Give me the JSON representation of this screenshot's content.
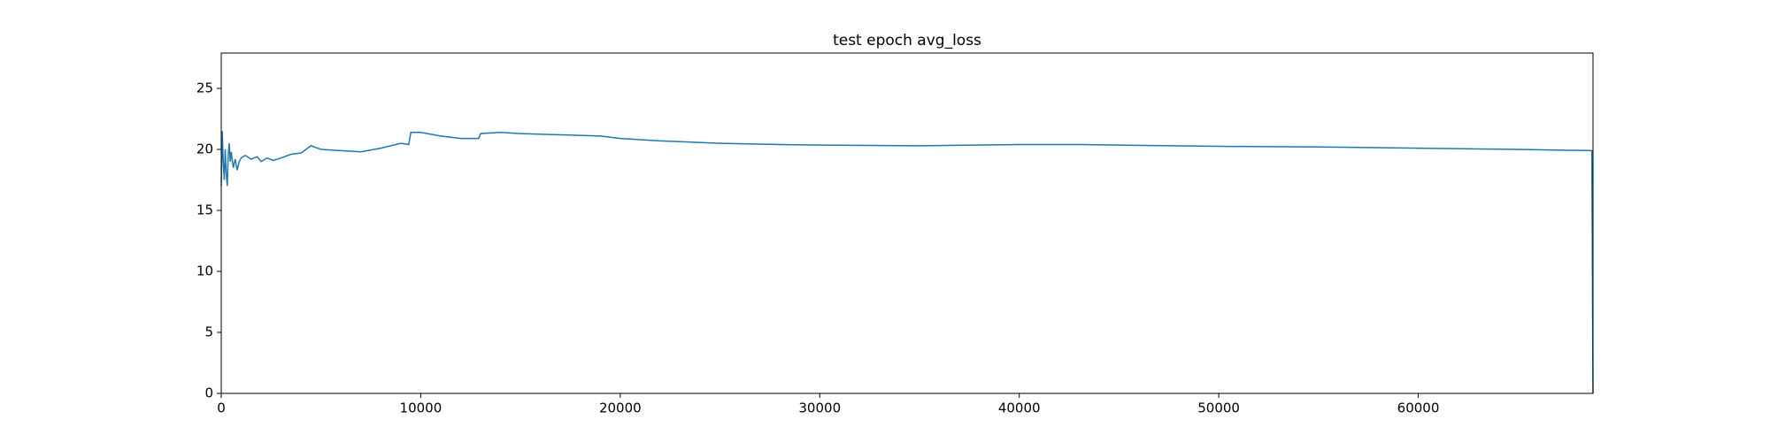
{
  "chart_data": {
    "type": "line",
    "title": "test epoch avg_loss",
    "title_color": "#ff0000",
    "x": [
      0,
      50,
      100,
      150,
      200,
      250,
      300,
      350,
      400,
      450,
      500,
      600,
      700,
      800,
      900,
      1000,
      1200,
      1500,
      1800,
      2000,
      2300,
      2600,
      3000,
      3500,
      4000,
      4500,
      5000,
      6000,
      7000,
      8000,
      9000,
      9400,
      9500,
      10000,
      11000,
      12000,
      12900,
      13000,
      14000,
      15000,
      17000,
      19000,
      20000,
      22000,
      25000,
      28000,
      30000,
      35000,
      40000,
      43000,
      45000,
      50000,
      55000,
      60000,
      65000,
      68700,
      68760
    ],
    "series": [
      {
        "color": "#1f77b4",
        "values": [
          17,
          21.5,
          19,
          17.5,
          20,
          18,
          17,
          19.5,
          20.5,
          19,
          19.8,
          18.5,
          19.2,
          18.3,
          19,
          19.3,
          19.5,
          19.2,
          19.4,
          19.0,
          19.3,
          19.1,
          19.3,
          19.6,
          19.7,
          20.3,
          20.0,
          19.9,
          19.8,
          20.1,
          20.5,
          20.4,
          21.4,
          21.4,
          21.1,
          20.9,
          20.9,
          21.3,
          21.4,
          21.3,
          21.2,
          21.1,
          20.9,
          20.7,
          20.5,
          20.4,
          20.35,
          20.3,
          20.4,
          20.4,
          20.35,
          20.25,
          20.2,
          20.1,
          20.0,
          19.9,
          0
        ]
      }
    ],
    "xlim": [
      0,
      68760
    ],
    "ylim": [
      0,
      27.9
    ],
    "xticks": [
      0,
      10000,
      20000,
      30000,
      40000,
      50000,
      60000
    ],
    "yticks": [
      0,
      5,
      10,
      15,
      20,
      25
    ],
    "grid": false
  }
}
